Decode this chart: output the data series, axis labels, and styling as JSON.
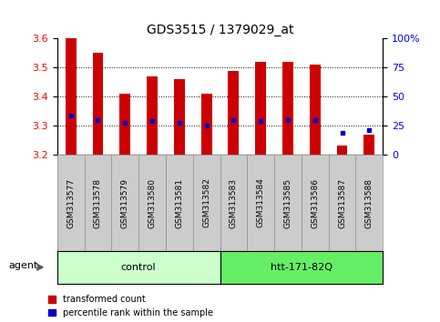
{
  "title": "GDS3515 / 1379029_at",
  "samples": [
    "GSM313577",
    "GSM313578",
    "GSM313579",
    "GSM313580",
    "GSM313581",
    "GSM313582",
    "GSM313583",
    "GSM313584",
    "GSM313585",
    "GSM313586",
    "GSM313587",
    "GSM313588"
  ],
  "bar_values": [
    3.6,
    3.55,
    3.41,
    3.47,
    3.46,
    3.41,
    3.49,
    3.52,
    3.52,
    3.51,
    3.23,
    3.27
  ],
  "blue_dot_values": [
    3.335,
    3.32,
    3.31,
    3.315,
    3.31,
    3.3,
    3.32,
    3.315,
    3.32,
    3.32,
    3.275,
    3.285
  ],
  "ylim": [
    3.2,
    3.6
  ],
  "y_ticks_left": [
    3.2,
    3.3,
    3.4,
    3.5,
    3.6
  ],
  "y_ticks_right": [
    0,
    25,
    50,
    75,
    100
  ],
  "groups": [
    {
      "label": "control",
      "start": 0,
      "end": 5,
      "color": "#ccffcc"
    },
    {
      "label": "htt-171-82Q",
      "start": 6,
      "end": 11,
      "color": "#66ee66"
    }
  ],
  "group_row_label": "agent",
  "bar_color": "#cc0000",
  "dot_color": "#0000cc",
  "legend_items": [
    {
      "label": "transformed count",
      "color": "#cc0000"
    },
    {
      "label": "percentile rank within the sample",
      "color": "#0000cc"
    }
  ],
  "xlabel_area_color": "#cccccc",
  "grid_color": "#000000",
  "grid_style": "dotted",
  "bar_width": 0.4
}
